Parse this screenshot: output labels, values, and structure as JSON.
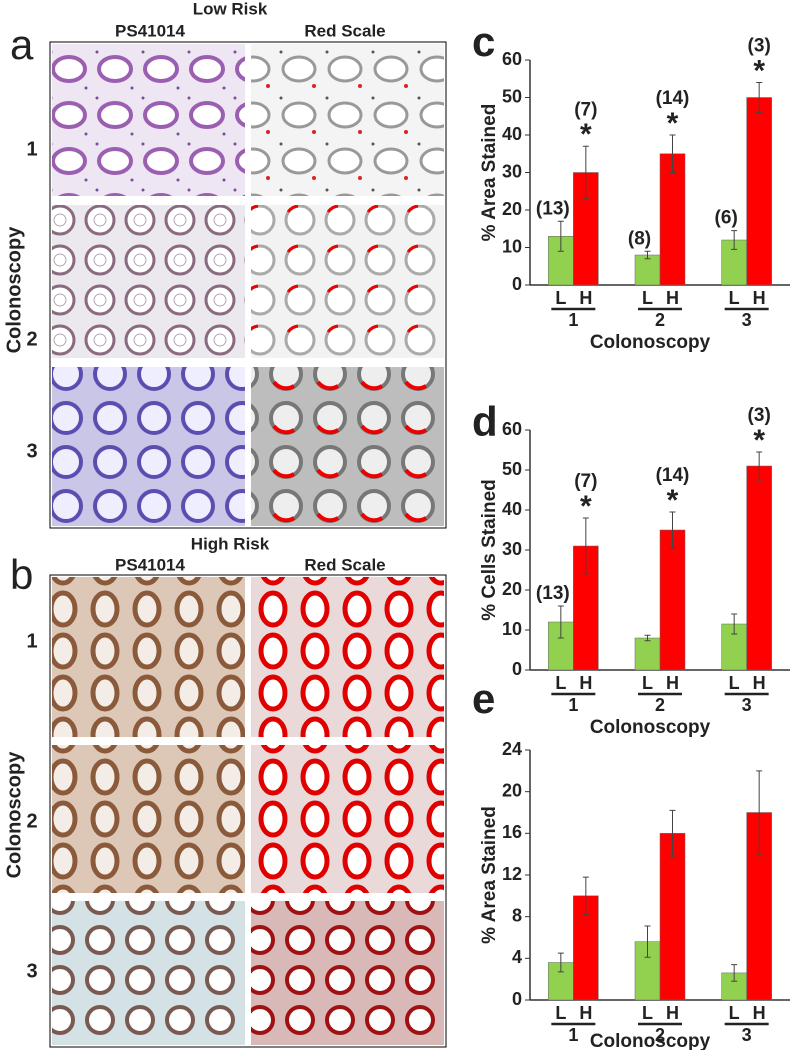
{
  "panel_a": {
    "label": "a",
    "title": "Low Risk",
    "columns": [
      "PS41014",
      "Red Scale"
    ],
    "row_axis": "Colonoscopy",
    "rows": [
      "1",
      "2",
      "3"
    ]
  },
  "panel_b": {
    "label": "b",
    "title": "High Risk",
    "columns": [
      "PS41014",
      "Red Scale"
    ],
    "row_axis": "Colonoscopy",
    "rows": [
      "1",
      "2",
      "3"
    ]
  },
  "chart_data": [
    {
      "type": "bar",
      "panel_label": "c",
      "ylabel": "% Area Stained",
      "xlabel": "Colonoscopy",
      "categories": [
        "1",
        "2",
        "3"
      ],
      "ylim": [
        0,
        60
      ],
      "yticks": [
        0,
        10,
        20,
        30,
        40,
        50,
        60
      ],
      "series": [
        {
          "name": "L",
          "color": "#92d050",
          "values": [
            13,
            8,
            12
          ],
          "errors": [
            4,
            1,
            2.5
          ],
          "n_labels": [
            "(13)",
            "(8)",
            "(6)"
          ]
        },
        {
          "name": "H",
          "color": "#ff0000",
          "values": [
            30,
            35,
            50
          ],
          "errors": [
            7,
            5,
            4
          ],
          "n_labels": [
            "(7)",
            "(14)",
            "(3)"
          ],
          "sig_labels": [
            "*",
            "*",
            "*"
          ]
        }
      ]
    },
    {
      "type": "bar",
      "panel_label": "d",
      "ylabel": "% Cells Stained",
      "xlabel": "Colonoscopy",
      "categories": [
        "1",
        "2",
        "3"
      ],
      "ylim": [
        0,
        60
      ],
      "yticks": [
        0,
        10,
        20,
        30,
        40,
        50,
        60
      ],
      "series": [
        {
          "name": "L",
          "color": "#92d050",
          "values": [
            12,
            8,
            11.5
          ],
          "errors": [
            4,
            0.7,
            2.5
          ],
          "n_labels": [
            "(13)",
            null,
            null
          ]
        },
        {
          "name": "H",
          "color": "#ff0000",
          "values": [
            31,
            35,
            51
          ],
          "errors": [
            7,
            4.5,
            3.5
          ],
          "n_labels": [
            "(7)",
            "(14)",
            "(3)"
          ],
          "sig_labels": [
            "*",
            "*",
            "*"
          ]
        }
      ]
    },
    {
      "type": "bar",
      "panel_label": "e",
      "ylabel": "% Area Stained",
      "xlabel": "Colonoscopy",
      "categories": [
        "1",
        "2",
        "3"
      ],
      "ylim": [
        0,
        24
      ],
      "yticks": [
        0,
        4,
        8,
        12,
        16,
        20,
        24
      ],
      "series": [
        {
          "name": "L",
          "color": "#92d050",
          "values": [
            3.6,
            5.6,
            2.6
          ],
          "errors": [
            0.9,
            1.5,
            0.8
          ]
        },
        {
          "name": "H",
          "color": "#ff0000",
          "values": [
            10,
            16,
            18
          ],
          "errors": [
            1.8,
            2.2,
            4
          ]
        }
      ]
    }
  ]
}
